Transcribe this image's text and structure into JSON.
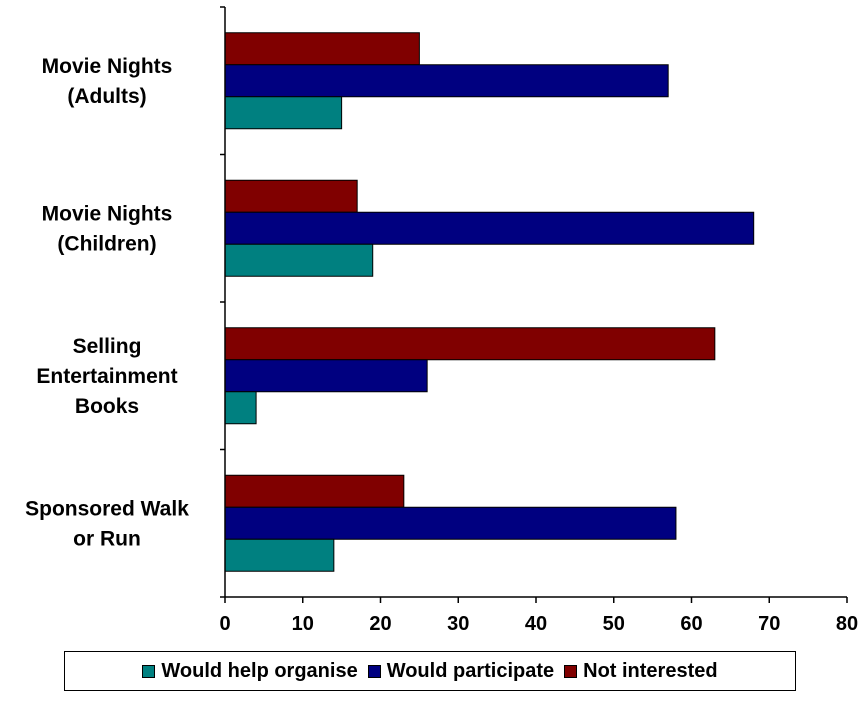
{
  "chart_data": {
    "type": "bar",
    "orientation": "horizontal",
    "categories": [
      [
        "Movie Nights",
        "(Adults)"
      ],
      [
        "Movie Nights",
        "(Children)"
      ],
      [
        "Selling",
        "Entertainment",
        "Books"
      ],
      [
        "Sponsored Walk",
        "or Run"
      ]
    ],
    "series": [
      {
        "name": "Would help organise",
        "color": "#008080",
        "values": [
          15,
          19,
          4,
          14
        ]
      },
      {
        "name": "Would participate",
        "color": "#000080",
        "values": [
          57,
          68,
          26,
          58
        ]
      },
      {
        "name": "Not interested",
        "color": "#800000",
        "values": [
          25,
          17,
          63,
          23
        ]
      }
    ],
    "xlim": [
      0,
      80
    ],
    "xticks": [
      0,
      10,
      20,
      30,
      40,
      50,
      60,
      70,
      80
    ],
    "grid": false,
    "legend": "bottom"
  }
}
